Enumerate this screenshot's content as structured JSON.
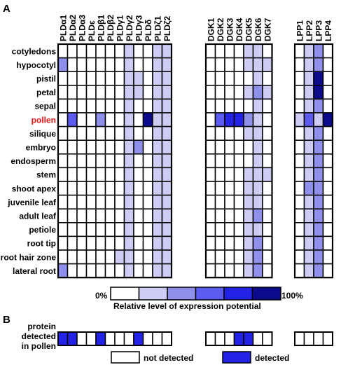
{
  "panel_labels": {
    "a": "A",
    "b": "B"
  },
  "legend": {
    "scale_min": "0%",
    "scale_max": "100%",
    "caption": "Relative level of expression potential",
    "not_detected": "not detected",
    "detected": "detected"
  },
  "panel_b_label": [
    "protein",
    "detected",
    "in pollen"
  ],
  "colors": {
    "levels": [
      "#ffffff",
      "#ccccf5",
      "#8f8fec",
      "#5c5cf0",
      "#2323e8",
      "#0b0b8c"
    ],
    "highlight_text": "#ee1111"
  },
  "chart_data": {
    "type": "heatmap",
    "x_groups": [
      [
        "PLDα1",
        "PLDα2",
        "PLDα3",
        "PLDε",
        "PLDβ1",
        "PLDβ2",
        "PLDγ1",
        "PLDγ2",
        "PLDγ3",
        "PLDδ",
        "PLDζ1",
        "PLDζ2"
      ],
      [
        "DGK1",
        "DGK2",
        "DGK3",
        "DGK4",
        "DGK5",
        "DGK6",
        "DGK7"
      ],
      [
        "LPP1",
        "LPP2",
        "LPP3",
        "LPP4"
      ]
    ],
    "rows": [
      "cotyledons",
      "hypocotyl",
      "pistil",
      "petal",
      "sepal",
      "pollen",
      "silique",
      "embryo",
      "endosperm",
      "stem",
      "shoot apex",
      "juvenile leaf",
      "adult leaf",
      "petiole",
      "root tip",
      "root hair zone",
      "lateral root"
    ],
    "highlighted_row": "pollen",
    "value_scale": [
      0,
      5
    ],
    "values": [
      [
        0,
        0,
        0,
        0,
        0,
        0,
        0,
        1,
        0,
        0,
        1,
        1,
        0,
        0,
        0,
        0,
        1,
        1,
        0,
        0,
        1,
        2,
        0
      ],
      [
        2,
        0,
        0,
        0,
        0,
        0,
        0,
        1,
        0,
        0,
        1,
        1,
        0,
        0,
        0,
        0,
        1,
        1,
        1,
        0,
        1,
        2,
        0
      ],
      [
        0,
        0,
        0,
        0,
        0,
        0,
        0,
        1,
        1,
        0,
        1,
        1,
        0,
        0,
        0,
        0,
        0,
        1,
        0,
        0,
        1,
        5,
        0
      ],
      [
        0,
        0,
        0,
        0,
        0,
        0,
        0,
        1,
        1,
        0,
        1,
        1,
        0,
        0,
        0,
        0,
        1,
        2,
        1,
        0,
        1,
        5,
        0
      ],
      [
        0,
        0,
        0,
        0,
        0,
        0,
        0,
        1,
        0,
        0,
        1,
        1,
        0,
        0,
        0,
        0,
        0,
        1,
        0,
        0,
        1,
        2,
        0
      ],
      [
        0,
        3,
        0,
        0,
        2,
        0,
        0,
        1,
        0,
        5,
        1,
        1,
        0,
        3,
        4,
        4,
        2,
        1,
        0,
        1,
        3,
        1,
        5
      ],
      [
        0,
        0,
        0,
        0,
        0,
        0,
        0,
        1,
        0,
        0,
        1,
        1,
        0,
        0,
        0,
        0,
        1,
        1,
        0,
        0,
        1,
        2,
        0
      ],
      [
        0,
        0,
        0,
        0,
        0,
        0,
        0,
        1,
        2,
        0,
        1,
        1,
        0,
        0,
        0,
        0,
        0,
        1,
        0,
        0,
        1,
        2,
        0
      ],
      [
        0,
        0,
        0,
        0,
        0,
        0,
        0,
        1,
        0,
        0,
        1,
        1,
        0,
        0,
        0,
        0,
        0,
        1,
        0,
        0,
        1,
        2,
        0
      ],
      [
        0,
        0,
        0,
        0,
        0,
        0,
        0,
        1,
        0,
        0,
        1,
        1,
        0,
        0,
        0,
        0,
        1,
        1,
        1,
        0,
        1,
        2,
        0
      ],
      [
        0,
        0,
        0,
        0,
        0,
        0,
        0,
        1,
        0,
        0,
        1,
        1,
        0,
        0,
        0,
        0,
        1,
        1,
        0,
        0,
        2,
        2,
        0
      ],
      [
        0,
        0,
        0,
        0,
        0,
        0,
        0,
        1,
        0,
        0,
        1,
        1,
        0,
        0,
        0,
        0,
        1,
        1,
        0,
        0,
        1,
        2,
        0
      ],
      [
        0,
        0,
        0,
        0,
        0,
        0,
        0,
        1,
        0,
        0,
        1,
        1,
        0,
        0,
        0,
        0,
        1,
        2,
        0,
        0,
        1,
        2,
        0
      ],
      [
        0,
        0,
        0,
        0,
        0,
        0,
        0,
        1,
        0,
        0,
        1,
        1,
        0,
        0,
        0,
        0,
        1,
        1,
        0,
        0,
        1,
        2,
        0
      ],
      [
        0,
        0,
        0,
        0,
        0,
        0,
        0,
        1,
        0,
        0,
        1,
        1,
        0,
        0,
        0,
        0,
        1,
        2,
        0,
        0,
        1,
        2,
        0
      ],
      [
        0,
        0,
        0,
        0,
        0,
        0,
        1,
        1,
        0,
        0,
        1,
        1,
        0,
        0,
        0,
        0,
        1,
        2,
        0,
        0,
        1,
        2,
        0
      ],
      [
        2,
        0,
        0,
        0,
        0,
        0,
        0,
        1,
        0,
        0,
        1,
        1,
        0,
        0,
        0,
        0,
        1,
        2,
        0,
        0,
        1,
        2,
        0
      ]
    ],
    "protein_detected_in_pollen": [
      1,
      1,
      0,
      0,
      1,
      0,
      0,
      0,
      1,
      0,
      0,
      0,
      0,
      0,
      0,
      1,
      1,
      0,
      0,
      0,
      0,
      0,
      0
    ]
  }
}
